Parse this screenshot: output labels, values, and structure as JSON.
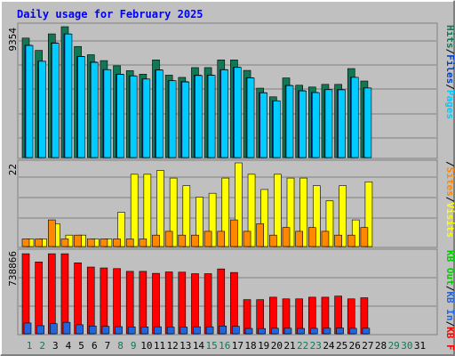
{
  "title": "Daily usage for February 2025",
  "colors": {
    "background": "#c0c0c0",
    "title": "#0000ff",
    "hits": "#117755",
    "files": "#0044cc",
    "pages": "#00ccff",
    "visits": "#ffff00",
    "sites": "#ff8800",
    "kbin": "#2266dd",
    "kbf": "#ff0000",
    "weekday_label": "#000000",
    "weekend_label": "#117755"
  },
  "chart_data": [
    {
      "type": "bar",
      "panel": "hits-files-pages",
      "ymax_label": "9354",
      "ylim": [
        0,
        9354
      ],
      "legend": [
        {
          "label": "Pages",
          "color": "#00ccff"
        },
        {
          "label": "Files",
          "color": "#0044cc"
        },
        {
          "label": "Hits",
          "color": "#117755"
        }
      ],
      "series": [
        {
          "name": "Hits",
          "values": [
            8540,
            7660,
            8840,
            9354,
            7940,
            7350,
            6930,
            6560,
            6210,
            5960,
            6980,
            5890,
            5730,
            6430,
            6430,
            6980,
            6980,
            6230,
            4960,
            4340,
            5690,
            5170,
            5040,
            5230,
            5230,
            6360,
            5470,
            0,
            0,
            0,
            0
          ]
        },
        {
          "name": "Files",
          "values": [
            8030,
            6890,
            8200,
            8840,
            7230,
            6830,
            6290,
            5960,
            5850,
            5620,
            6270,
            5500,
            5430,
            5890,
            5900,
            6290,
            6460,
            5710,
            4640,
            4060,
            5160,
            4780,
            4660,
            4860,
            4860,
            5740,
            4980,
            0,
            0,
            0,
            0
          ]
        },
        {
          "name": "Pages",
          "values": [
            8010,
            6880,
            8170,
            8830,
            7210,
            6800,
            6280,
            5940,
            5830,
            5610,
            6250,
            5490,
            5400,
            5860,
            5880,
            6270,
            6440,
            5690,
            4620,
            4050,
            5140,
            4760,
            4640,
            4850,
            4840,
            5730,
            4970,
            0,
            0,
            0,
            0
          ]
        }
      ]
    },
    {
      "type": "bar",
      "panel": "visits-sites",
      "ymax_label": "22",
      "ylim": [
        0,
        22
      ],
      "legend": [
        {
          "label": "Visits",
          "color": "#ffff00"
        },
        {
          "label": "Sites",
          "color": "#ff8800"
        },
        {
          "label": "/",
          "color": "#000000"
        }
      ],
      "series": [
        {
          "name": "Visits",
          "values": [
            2,
            2,
            6,
            3,
            3,
            2,
            2,
            9,
            19,
            19,
            20,
            18,
            16,
            13,
            14,
            18,
            22,
            19,
            15,
            19,
            18,
            18,
            16,
            12,
            16,
            7,
            17,
            0,
            0,
            0,
            0
          ]
        },
        {
          "name": "Sites",
          "values": [
            2,
            2,
            7,
            2,
            3,
            2,
            2,
            2,
            2,
            2,
            3,
            4,
            3,
            3,
            4,
            4,
            7,
            4,
            6,
            3,
            5,
            4,
            5,
            4,
            3,
            3,
            5,
            0,
            0,
            0,
            0
          ]
        }
      ]
    },
    {
      "type": "bar",
      "panel": "kb",
      "ymax_label": "738866",
      "ylim": [
        0,
        738866
      ],
      "legend": [
        {
          "label": "KB F",
          "color": "#ff0000"
        },
        {
          "label": "/",
          "color": "#000000"
        },
        {
          "label": "KB In",
          "color": "#2266dd"
        },
        {
          "label": "/",
          "color": "#000000"
        },
        {
          "label": "KB Out",
          "color": "#00cc00"
        }
      ],
      "series": [
        {
          "name": "KB F",
          "values": [
            722000,
            648000,
            722000,
            722000,
            640000,
            602000,
            594000,
            588000,
            563000,
            563000,
            545000,
            558000,
            556000,
            542000,
            542000,
            585000,
            553000,
            308000,
            308000,
            330000,
            315000,
            315000,
            330000,
            330000,
            340000,
            315000,
            325000,
            0,
            0,
            0,
            0
          ]
        },
        {
          "name": "KB In",
          "values": [
            97000,
            73000,
            91000,
            103000,
            81000,
            70000,
            67000,
            64000,
            62000,
            62000,
            63000,
            60000,
            60000,
            63000,
            63000,
            70000,
            67000,
            48000,
            47000,
            50000,
            50000,
            48000,
            49000,
            50000,
            52000,
            49000,
            50000,
            0,
            0,
            0,
            0
          ]
        }
      ]
    }
  ],
  "days": [
    "1",
    "2",
    "3",
    "4",
    "5",
    "6",
    "7",
    "8",
    "9",
    "10",
    "11",
    "12",
    "13",
    "14",
    "15",
    "16",
    "17",
    "18",
    "19",
    "20",
    "21",
    "22",
    "23",
    "24",
    "25",
    "26",
    "27",
    "28",
    "29",
    "30",
    "31"
  ],
  "weekend_days": [
    1,
    2,
    8,
    9,
    15,
    16,
    22,
    23,
    29,
    30
  ]
}
